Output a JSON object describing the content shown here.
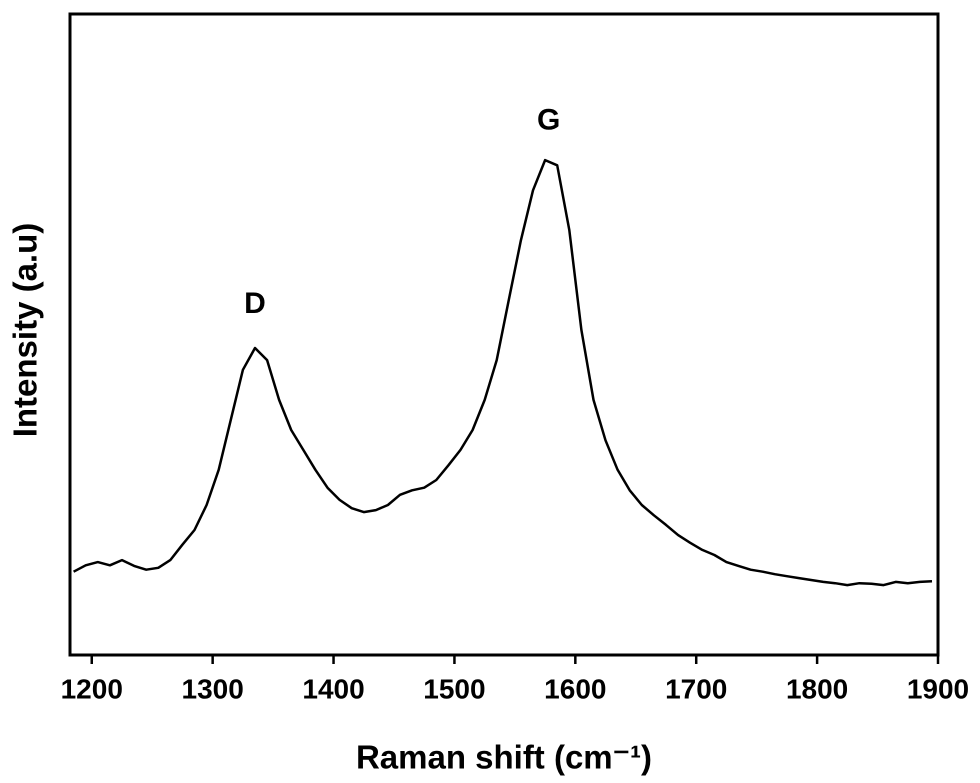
{
  "chart_data": {
    "type": "line",
    "x_label": "Raman shift (cm⁻¹)",
    "y_label": "Intensity (a.u)",
    "x": [
      1185,
      1195,
      1205,
      1215,
      1225,
      1235,
      1245,
      1255,
      1265,
      1275,
      1285,
      1295,
      1305,
      1315,
      1325,
      1335,
      1345,
      1355,
      1365,
      1375,
      1385,
      1395,
      1405,
      1415,
      1425,
      1435,
      1445,
      1455,
      1465,
      1475,
      1485,
      1495,
      1505,
      1515,
      1525,
      1535,
      1545,
      1555,
      1565,
      1575,
      1585,
      1595,
      1605,
      1615,
      1625,
      1635,
      1645,
      1655,
      1665,
      1675,
      1685,
      1695,
      1705,
      1715,
      1725,
      1735,
      1745,
      1755,
      1765,
      1775,
      1785,
      1795,
      1805,
      1815,
      1825,
      1835,
      1845,
      1855,
      1865,
      1875,
      1885,
      1895
    ],
    "values": [
      13.0,
      14.0,
      14.5,
      14.0,
      14.8,
      13.9,
      13.3,
      13.6,
      14.8,
      17.2,
      19.5,
      23.4,
      28.9,
      36.7,
      44.5,
      47.9,
      46.0,
      39.8,
      35.1,
      32.0,
      28.9,
      26.1,
      24.2,
      22.9,
      22.3,
      22.6,
      23.4,
      25.0,
      25.7,
      26.1,
      27.3,
      29.6,
      32.0,
      35.1,
      39.8,
      46.0,
      55.4,
      64.7,
      72.5,
      77.2,
      76.4,
      66.3,
      50.7,
      39.8,
      33.5,
      28.9,
      25.7,
      23.4,
      21.8,
      20.3,
      18.7,
      17.5,
      16.4,
      15.6,
      14.5,
      13.9,
      13.3,
      13.0,
      12.6,
      12.3,
      12.0,
      11.7,
      11.4,
      11.2,
      10.9,
      11.2,
      11.1,
      10.9,
      11.4,
      11.2,
      11.4,
      11.5
    ],
    "color": "#000000",
    "xlim": [
      1182,
      1900
    ],
    "ylim": [
      0,
      100
    ],
    "xticks": [
      1200,
      1300,
      1400,
      1500,
      1600,
      1700,
      1800,
      1900
    ],
    "annotations": [
      {
        "text": "D",
        "x": 1335,
        "y": 54.6
      },
      {
        "text": "G",
        "x": 1578,
        "y": 83.2
      }
    ]
  }
}
